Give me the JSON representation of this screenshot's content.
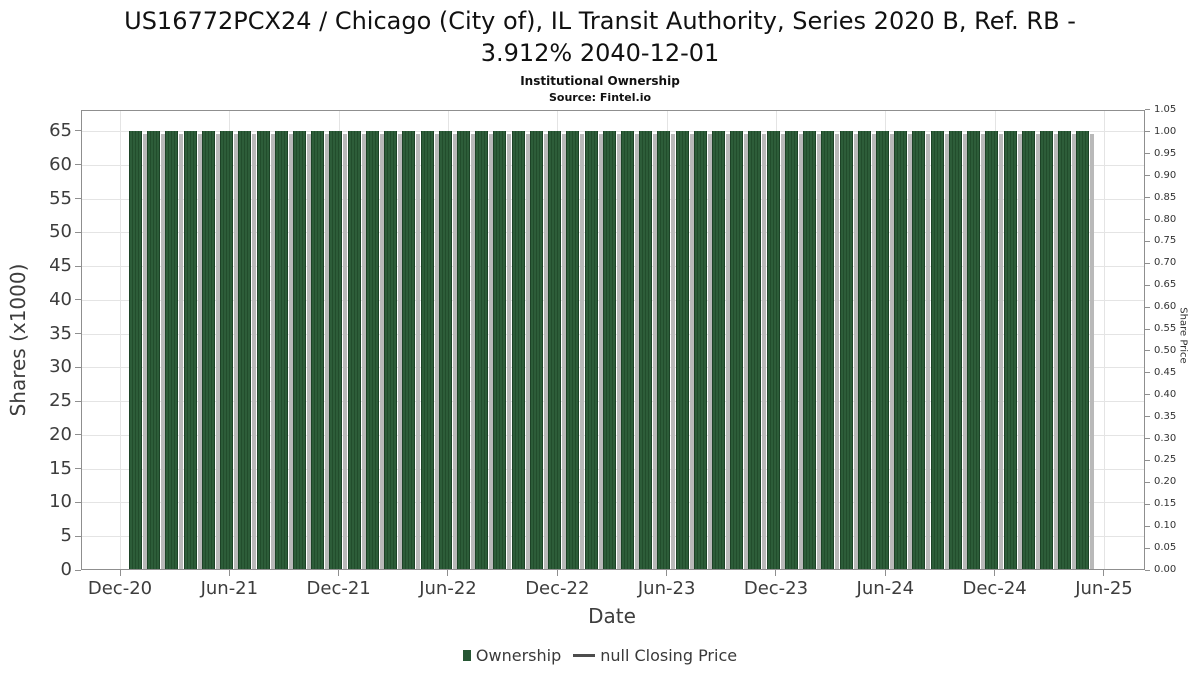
{
  "header": {
    "title_line1": "US16772PCX24 / Chicago (City of), IL Transit Authority, Series 2020 B, Ref. RB -",
    "title_line2": "3.912% 2040-12-01",
    "subtitle": "Institutional Ownership",
    "source": "Source: Fintel.io"
  },
  "axes": {
    "left": {
      "label": "Shares (x1000)",
      "ticks": [
        "0",
        "5",
        "10",
        "15",
        "20",
        "25",
        "30",
        "35",
        "40",
        "45",
        "50",
        "55",
        "60",
        "65"
      ]
    },
    "right": {
      "label": "Share Price",
      "ticks": [
        "0.00",
        "0.05",
        "0.10",
        "0.15",
        "0.20",
        "0.25",
        "0.30",
        "0.35",
        "0.40",
        "0.45",
        "0.50",
        "0.55",
        "0.60",
        "0.65",
        "0.70",
        "0.75",
        "0.80",
        "0.85",
        "0.90",
        "0.95",
        "1.00",
        "1.05"
      ]
    },
    "x": {
      "label": "Date",
      "ticks": [
        "Dec-20",
        "Jun-21",
        "Dec-21",
        "Jun-22",
        "Dec-22",
        "Jun-23",
        "Dec-23",
        "Jun-24",
        "Dec-24",
        "Jun-25"
      ]
    }
  },
  "legend": {
    "items": [
      {
        "label": "Ownership",
        "marker": "square"
      },
      {
        "label": "null Closing Price",
        "marker": "line"
      }
    ]
  },
  "colors": {
    "bar": "#2d5d39",
    "bar_stripe": "#224d2c",
    "bar_shadow": "#b9b9b9",
    "legend_square": "#265633",
    "legend_line": "#4d4d4d",
    "grid": "#e4e4e4",
    "frame": "#8f8f8f",
    "text": "#3d3d3d"
  },
  "chart_data": {
    "type": "bar",
    "title": "US16772PCX24 / Chicago (City of), IL Transit Authority, Series 2020 B, Ref. RB - 3.912% 2040-12-01",
    "subtitle": "Institutional Ownership",
    "source": "Source: Fintel.io",
    "xlabel": "Date",
    "ylabel_left": "Shares (x1000)",
    "ylabel_right": "Share Price",
    "ylim_left": [
      0,
      68.25
    ],
    "ylim_right": [
      0,
      1.05
    ],
    "grid": true,
    "legend_position": "bottom",
    "x_tick_labels": [
      "Dec-20",
      "Jun-21",
      "Dec-21",
      "Jun-22",
      "Dec-22",
      "Jun-23",
      "Dec-23",
      "Jun-24",
      "Dec-24",
      "Jun-25"
    ],
    "categories": [
      "Jan-21",
      "Feb-21",
      "Mar-21",
      "Apr-21",
      "May-21",
      "Jun-21",
      "Jul-21",
      "Aug-21",
      "Sep-21",
      "Oct-21",
      "Nov-21",
      "Dec-21",
      "Jan-22",
      "Feb-22",
      "Mar-22",
      "Apr-22",
      "May-22",
      "Jun-22",
      "Jul-22",
      "Aug-22",
      "Sep-22",
      "Oct-22",
      "Nov-22",
      "Dec-22",
      "Jan-23",
      "Feb-23",
      "Mar-23",
      "Apr-23",
      "May-23",
      "Jun-23",
      "Jul-23",
      "Aug-23",
      "Sep-23",
      "Oct-23",
      "Nov-23",
      "Dec-23",
      "Jan-24",
      "Feb-24",
      "Mar-24",
      "Apr-24",
      "May-24",
      "Jun-24",
      "Jul-24",
      "Aug-24",
      "Sep-24",
      "Oct-24",
      "Nov-24",
      "Dec-24",
      "Jan-25",
      "Feb-25",
      "Mar-25",
      "Apr-25",
      "May-25"
    ],
    "series": [
      {
        "name": "Ownership",
        "type": "bar",
        "axis": "left",
        "color": "#2d5d39",
        "values": [
          65,
          65,
          65,
          65,
          65,
          65,
          65,
          65,
          65,
          65,
          65,
          65,
          65,
          65,
          65,
          65,
          65,
          65,
          65,
          65,
          65,
          65,
          65,
          65,
          65,
          65,
          65,
          65,
          65,
          65,
          65,
          65,
          65,
          65,
          65,
          65,
          65,
          65,
          65,
          65,
          65,
          65,
          65,
          65,
          65,
          65,
          65,
          65,
          65,
          65,
          65,
          65,
          65
        ]
      },
      {
        "name": "null Closing Price",
        "type": "line",
        "axis": "right",
        "values": []
      }
    ]
  }
}
